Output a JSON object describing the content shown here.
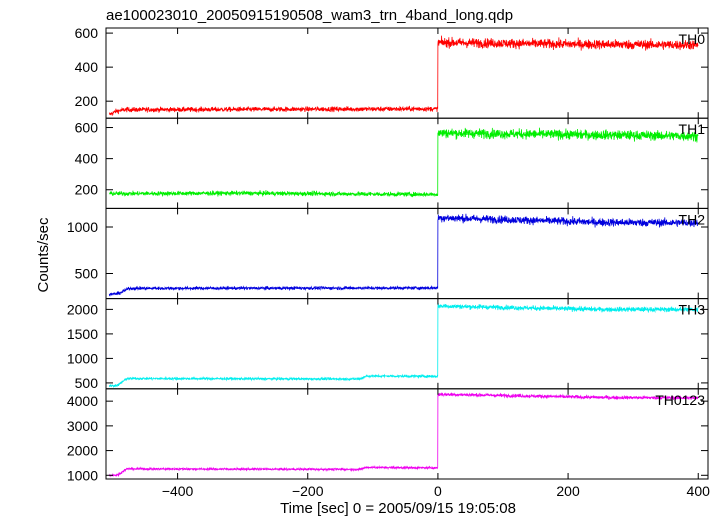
{
  "chart_data": {
    "type": "line",
    "title": "ae100023010_20050915190508_wam3_trn_4band_long.qdp",
    "xlabel": "Time [sec] 0 = 2005/09/15 19:05:08",
    "ylabel": "Counts/sec",
    "xlim": [
      -510,
      415
    ],
    "x_ticks": [
      -400,
      -200,
      0,
      200,
      400
    ],
    "x_tick_labels": [
      "−400",
      "−200",
      "0",
      "200",
      "400"
    ],
    "shared_x": true,
    "grid": false,
    "panels": [
      {
        "name": "TH0",
        "color": "#ff0000",
        "ylim": [
          100,
          630
        ],
        "y_ticks": [
          200,
          400,
          600
        ],
        "segments": [
          {
            "x": [
              -505,
              -495,
              -480,
              0
            ],
            "y": [
              120,
              140,
              150,
              155
            ],
            "noise": 10
          },
          {
            "x": [
              0,
              200,
              400,
              400
            ],
            "y": [
              545,
              535,
              530,
              530
            ],
            "noise": 20
          }
        ]
      },
      {
        "name": "TH1",
        "color": "#00ee00",
        "ylim": [
          80,
          660
        ],
        "y_ticks": [
          200,
          400,
          600
        ],
        "segments": [
          {
            "x": [
              -505,
              -300,
              -100,
              0
            ],
            "y": [
              175,
              178,
              172,
              170
            ],
            "noise": 10
          },
          {
            "x": [
              0,
              200,
              400,
              400
            ],
            "y": [
              565,
              555,
              545,
              545
            ],
            "noise": 22
          }
        ]
      },
      {
        "name": "TH2",
        "color": "#0000dd",
        "ylim": [
          230,
          1200
        ],
        "y_ticks": [
          500,
          1000
        ],
        "segments": [
          {
            "x": [
              -505,
              -490,
              -475,
              0
            ],
            "y": [
              275,
              285,
              340,
              345
            ],
            "noise": 12
          },
          {
            "x": [
              0,
              100,
              250,
              400
            ],
            "y": [
              1100,
              1080,
              1050,
              1045
            ],
            "noise": 30
          }
        ]
      },
      {
        "name": "TH3",
        "color": "#00eeee",
        "ylim": [
          380,
          2220
        ],
        "y_ticks": [
          500,
          1000,
          1500,
          2000
        ],
        "segments": [
          {
            "x": [
              -505,
              -492,
              -478,
              -120,
              -110,
              0
            ],
            "y": [
              440,
              450,
              590,
              580,
              640,
              635
            ],
            "noise": 18
          },
          {
            "x": [
              0,
              100,
              250,
              400
            ],
            "y": [
              2070,
              2040,
              2000,
              2000
            ],
            "noise": 35
          }
        ]
      },
      {
        "name": "TH0123",
        "color": "#ee00ee",
        "ylim": [
          850,
          4500
        ],
        "y_ticks": [
          1000,
          2000,
          3000,
          4000
        ],
        "segments": [
          {
            "x": [
              -505,
              -492,
              -478,
              -120,
              -110,
              0
            ],
            "y": [
              1000,
              1010,
              1260,
              1240,
              1320,
              1300
            ],
            "noise": 30
          },
          {
            "x": [
              0,
              100,
              250,
              400
            ],
            "y": [
              4280,
              4230,
              4150,
              4130
            ],
            "noise": 50
          }
        ]
      }
    ]
  }
}
